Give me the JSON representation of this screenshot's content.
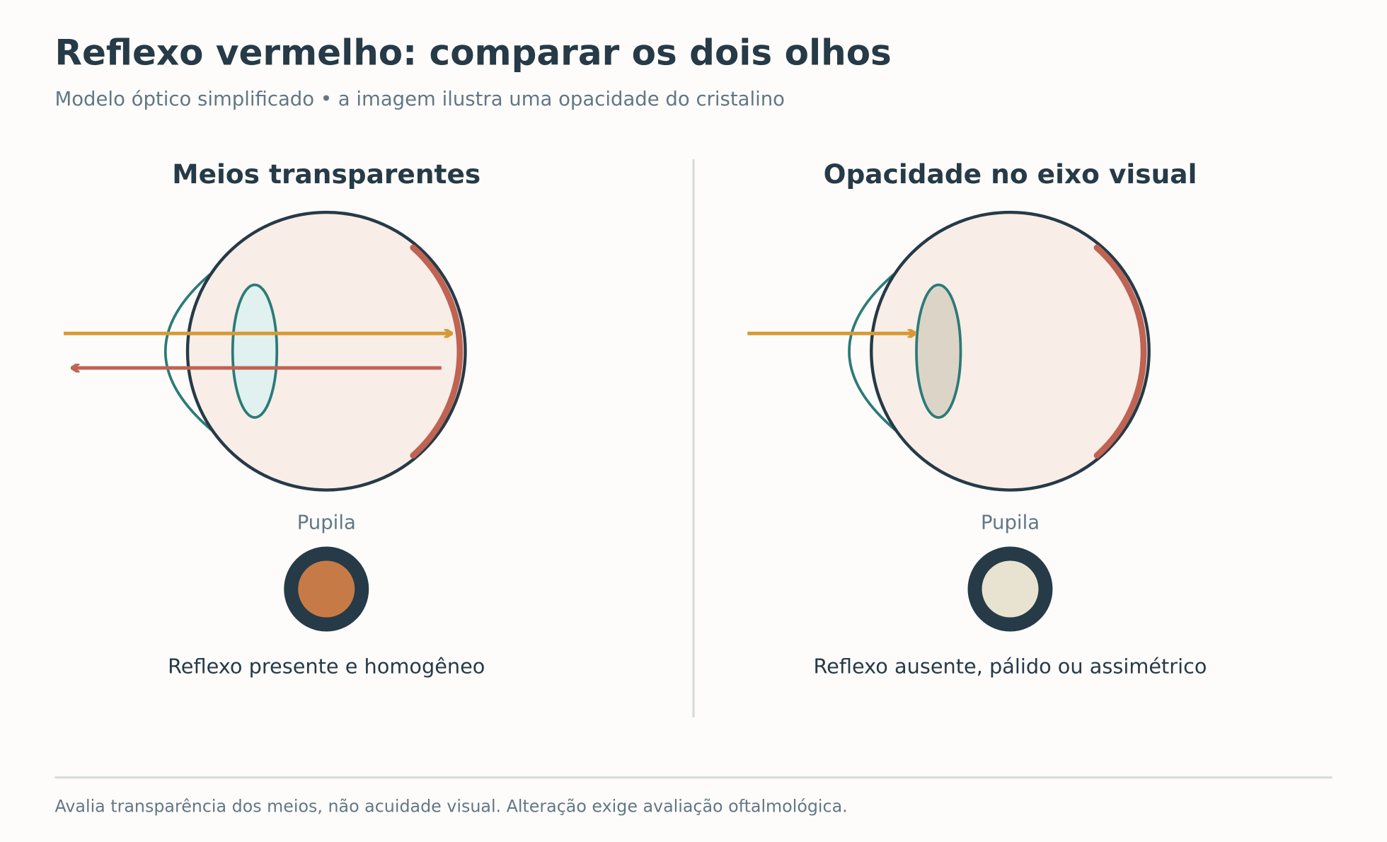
{
  "header": {
    "title": "Reflexo vermelho: comparar os dois olhos",
    "subtitle": "Modelo óptico simplificado • a imagem ilustra uma opacidade do cristalino"
  },
  "panels": [
    {
      "title": "Meios transparentes",
      "pupil_label": "Pupila",
      "caption": "Reflexo presente e homogêneo"
    },
    {
      "title": "Opacidade no eixo visual",
      "pupil_label": "Pupila",
      "caption": "Reflexo ausente, pálido ou assimétrico"
    }
  ],
  "footer": "Avalia transparência dos meios, não acuidade visual. Alteração exige avaliação oftalmológica."
}
